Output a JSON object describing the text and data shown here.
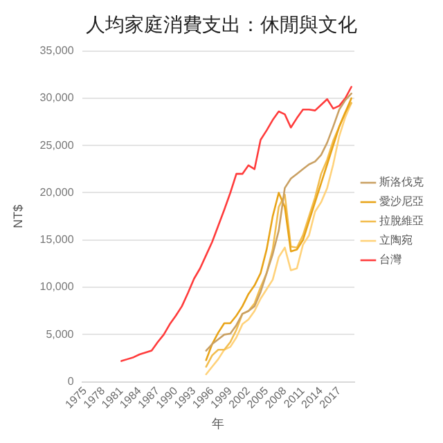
{
  "chart_data": {
    "type": "line",
    "title": "人均家庭消費支出：休閒與文化",
    "xlabel": "年",
    "ylabel": "NT$",
    "categories": [
      "1975",
      null,
      null,
      "1978",
      null,
      null,
      "1981",
      null,
      null,
      "1984",
      null,
      null,
      "1987",
      null,
      null,
      "1990",
      null,
      null,
      "1993",
      null,
      null,
      "1996",
      null,
      null,
      "1999",
      null,
      null,
      "2002",
      null,
      null,
      "2005",
      null,
      null,
      "2008",
      null,
      null,
      "2011",
      null,
      null,
      "2014",
      null,
      null,
      "2017",
      null,
      null
    ],
    "series": [
      {
        "name": "斯洛伐克",
        "color": "#c9a063",
        "values": [
          null,
          null,
          null,
          null,
          null,
          null,
          null,
          null,
          null,
          null,
          null,
          null,
          null,
          null,
          null,
          null,
          null,
          null,
          null,
          null,
          3300,
          4000,
          4500,
          5000,
          5100,
          6000,
          7200,
          7500,
          8000,
          9500,
          11500,
          13500,
          16000,
          20500,
          21500,
          22000,
          22500,
          23000,
          23300,
          24000,
          25300,
          27000,
          28800,
          29800,
          30500
        ]
      },
      {
        "name": "愛沙尼亞",
        "color": "#e8a317",
        "values": [
          null,
          null,
          null,
          null,
          null,
          null,
          null,
          null,
          null,
          null,
          null,
          null,
          null,
          null,
          null,
          null,
          null,
          null,
          null,
          null,
          2300,
          4000,
          5200,
          6200,
          6200,
          7000,
          8000,
          9300,
          10200,
          11500,
          14000,
          17500,
          20000,
          18500,
          13800,
          14000,
          15000,
          17000,
          19000,
          21000,
          23000,
          25000,
          27000,
          28500,
          30000
        ]
      },
      {
        "name": "拉脫維亞",
        "color": "#f2bd4f",
        "values": [
          null,
          null,
          null,
          null,
          null,
          null,
          null,
          null,
          null,
          null,
          null,
          null,
          null,
          null,
          null,
          null,
          null,
          null,
          null,
          null,
          1600,
          2800,
          3400,
          3400,
          4200,
          5500,
          7200,
          7500,
          8300,
          10000,
          11500,
          14000,
          18500,
          19800,
          14300,
          14200,
          15500,
          17500,
          19500,
          22000,
          23500,
          25500,
          27000,
          28500,
          29500
        ]
      },
      {
        "name": "立陶宛",
        "color": "#ffd27a",
        "values": [
          null,
          null,
          null,
          null,
          null,
          null,
          null,
          null,
          null,
          null,
          null,
          null,
          null,
          null,
          null,
          null,
          null,
          null,
          null,
          null,
          800,
          1600,
          2400,
          3400,
          3700,
          4700,
          6100,
          6600,
          7500,
          8800,
          9800,
          10800,
          13200,
          14200,
          11800,
          12000,
          14500,
          15500,
          18000,
          19000,
          20500,
          23000,
          26000,
          28000,
          29500
        ]
      },
      {
        "name": "台灣",
        "color": "#ff3b3b",
        "values": [
          null,
          null,
          null,
          null,
          null,
          null,
          2200,
          2400,
          2600,
          2900,
          3100,
          3300,
          4200,
          5000,
          6100,
          7000,
          8000,
          9400,
          10900,
          12000,
          13400,
          14800,
          16500,
          18200,
          20000,
          22000,
          22000,
          22900,
          22500,
          25600,
          26600,
          27700,
          28600,
          28300,
          26900,
          27900,
          28800,
          28800,
          28700,
          29300,
          29900,
          28900,
          29200,
          30000,
          31200
        ]
      }
    ],
    "ylim": [
      0,
      35000
    ],
    "yticks": [
      0,
      {
        "value": 5000,
        "label": "5,000"
      },
      {
        "value": 10000,
        "label": "10,000"
      },
      {
        "value": 15000,
        "label": "15,000"
      },
      {
        "value": 20000,
        "label": "20,000"
      },
      {
        "value": 25000,
        "label": "25,000"
      },
      {
        "value": 30000,
        "label": "30,000"
      },
      {
        "value": 35000,
        "label": "35,000"
      }
    ],
    "grid": "y",
    "legend": "right",
    "marker": "none",
    "line_style": "solid"
  }
}
